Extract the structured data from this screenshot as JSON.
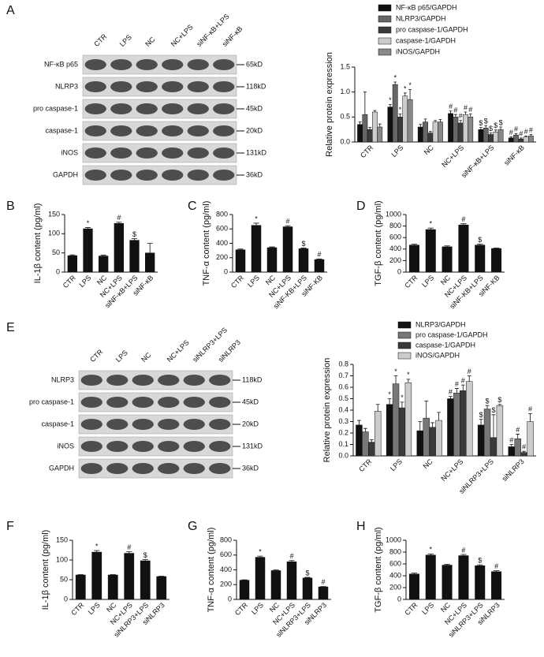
{
  "panels": [
    "A",
    "B",
    "C",
    "D",
    "E",
    "F",
    "G",
    "H"
  ],
  "blots": [
    {
      "lanes": [
        "CTR",
        "LPS",
        "NC",
        "NC+LPS",
        "siNF-κB+LPS",
        "siNF-κB"
      ],
      "rows": [
        {
          "name": "NF-κB p65",
          "kd": "65kD"
        },
        {
          "name": "NLRP3",
          "kd": "118kD"
        },
        {
          "name": "pro caspase-1",
          "kd": "45kD"
        },
        {
          "name": "caspase-1",
          "kd": "20kD"
        },
        {
          "name": "iNOS",
          "kd": "131kD"
        },
        {
          "name": "GAPDH",
          "kd": "36kD"
        }
      ]
    },
    {
      "lanes": [
        "CTR",
        "LPS",
        "NC",
        "NC+LPS",
        "siNLRP3+LPS",
        "siNLRP3"
      ],
      "rows": [
        {
          "name": "NLRP3",
          "kd": "118kD"
        },
        {
          "name": "pro caspase-1",
          "kd": "45kD"
        },
        {
          "name": "caspase-1",
          "kd": "20kD"
        },
        {
          "name": "iNOS",
          "kd": "131kD"
        },
        {
          "name": "GAPDH",
          "kd": "36kD"
        }
      ]
    }
  ],
  "chart_data": [
    {
      "type": "bar",
      "ylabel": "Relative  protein expression",
      "categories": [
        "CTR",
        "LPS",
        "NC",
        "NC+LPS",
        "siNF-κB+LPS",
        "siNF-κB"
      ],
      "ylim": [
        0,
        1.5
      ],
      "yticks": [
        {
          "value": 0,
          "label": "0.0"
        },
        0.5,
        {
          "value": 1,
          "label": "1.0"
        },
        1.5
      ],
      "series": [
        {
          "name": "NF-κB p65/GAPDH",
          "color": "#111111",
          "values": [
            0.35,
            0.7,
            0.3,
            0.57,
            0.25,
            0.08
          ],
          "errors": [
            0.05,
            0.05,
            0.05,
            0.05,
            0.04,
            0.02
          ],
          "marks": [
            null,
            "*",
            null,
            "#",
            "$",
            "#"
          ]
        },
        {
          "name": "NLRP3/GAPDH",
          "color": "#666666",
          "values": [
            0.55,
            1.15,
            0.4,
            0.5,
            0.28,
            0.14
          ],
          "errors": [
            0.45,
            0.05,
            0.06,
            0.05,
            0.05,
            0.03
          ],
          "marks": [
            null,
            "*",
            null,
            "#",
            "$",
            "#"
          ]
        },
        {
          "name": "pro caspase-1/GAPDH",
          "color": "#3a3a3a",
          "values": [
            0.25,
            0.5,
            0.18,
            0.38,
            0.15,
            0.06
          ],
          "errors": [
            0.04,
            0.06,
            0.03,
            0.05,
            0.03,
            0.02
          ],
          "marks": [
            null,
            "*",
            null,
            "#",
            "$",
            "#"
          ]
        },
        {
          "name": "caspase-1/GAPDH",
          "color": "#cccccc",
          "values": [
            0.6,
            0.92,
            0.4,
            0.55,
            0.2,
            0.1
          ],
          "errors": [
            0.03,
            0.06,
            0.03,
            0.05,
            0.04,
            0.02
          ],
          "marks": [
            null,
            "*",
            null,
            "#",
            "$",
            "#"
          ]
        },
        {
          "name": "iNOS/GAPDH",
          "color": "#888888",
          "values": [
            0.3,
            0.85,
            0.4,
            0.5,
            0.25,
            0.12
          ],
          "errors": [
            0.06,
            0.2,
            0.05,
            0.06,
            0.05,
            0.03
          ],
          "marks": [
            null,
            "*",
            null,
            "#",
            "$",
            "#"
          ]
        }
      ]
    },
    {
      "type": "bar",
      "ylabel": "IL-1β  content (pg/ml)",
      "color": "#111111",
      "categories": [
        "CTR",
        "LPS",
        "NC",
        "NC+LPS",
        "siNF-κB+LPS",
        "siNF-κB"
      ],
      "values": [
        43,
        113,
        42,
        127,
        83,
        50
      ],
      "errors": [
        2,
        3,
        2,
        3,
        4,
        25
      ],
      "marks": [
        null,
        "*",
        null,
        "#",
        "$",
        null
      ],
      "ylim": [
        0,
        150
      ],
      "yticks": [
        0,
        50,
        100,
        150
      ]
    },
    {
      "type": "bar",
      "ylabel": "TNF-α content (pg/ml)",
      "color": "#111111",
      "categories": [
        "CTR",
        "LPS",
        "NC",
        "NC+LPS",
        "siNF-KB+LPS",
        "siNF-KB"
      ],
      "values": [
        310,
        650,
        340,
        630,
        325,
        175
      ],
      "errors": [
        10,
        30,
        10,
        15,
        10,
        8
      ],
      "marks": [
        null,
        "*",
        null,
        "#",
        "$",
        "#"
      ],
      "ylim": [
        0,
        800
      ],
      "yticks": [
        0,
        200,
        400,
        600,
        800
      ]
    },
    {
      "type": "bar",
      "ylabel": "TGF-β  content (pg/ml)",
      "color": "#111111",
      "categories": [
        "CTR",
        "LPS",
        "NC",
        "NC+LPS",
        "siNF-KB+LPS",
        "siNF-KB"
      ],
      "values": [
        470,
        740,
        440,
        820,
        470,
        410
      ],
      "errors": [
        15,
        25,
        15,
        20,
        15,
        10
      ],
      "marks": [
        null,
        "*",
        null,
        "#",
        "$",
        null
      ],
      "ylim": [
        0,
        1000
      ],
      "yticks": [
        0,
        200,
        400,
        600,
        800,
        1000
      ]
    },
    {
      "type": "bar",
      "ylabel": "Relative  protein  expression",
      "categories": [
        "CTR",
        "LPS",
        "NC",
        "NC+LPS",
        "siNLRP3+LPS",
        "siNLRP3"
      ],
      "ylim": [
        0,
        0.8
      ],
      "yticks": [
        {
          "value": 0,
          "label": "0.0"
        },
        0.1,
        0.2,
        0.3,
        0.4,
        0.5,
        0.6,
        0.7,
        0.8
      ],
      "series": [
        {
          "name": "NLRP3/GAPDH",
          "color": "#111111",
          "values": [
            0.27,
            0.45,
            0.22,
            0.5,
            0.27,
            0.08
          ],
          "errors": [
            0.04,
            0.05,
            0.08,
            0.02,
            0.05,
            0.02
          ],
          "marks": [
            null,
            "*",
            null,
            "#",
            "$",
            "#"
          ]
        },
        {
          "name": "pro caspase-1/GAPDH",
          "color": "#777777",
          "values": [
            0.21,
            0.63,
            0.33,
            0.55,
            0.41,
            0.15
          ],
          "errors": [
            0.03,
            0.07,
            0.15,
            0.04,
            0.03,
            0.04
          ],
          "marks": [
            null,
            "*",
            null,
            "#",
            "$",
            "#"
          ]
        },
        {
          "name": "caspase-1/GAPDH",
          "color": "#3a3a3a",
          "values": [
            0.12,
            0.42,
            0.25,
            0.57,
            0.16,
            0.03
          ],
          "errors": [
            0.02,
            0.05,
            0.04,
            0.05,
            0.2,
            0.01
          ],
          "marks": [
            null,
            "*",
            null,
            "#",
            "$",
            "#"
          ]
        },
        {
          "name": "iNOS/GAPDH",
          "color": "#cccccc",
          "values": [
            0.39,
            0.64,
            0.31,
            0.65,
            0.44,
            0.3
          ],
          "errors": [
            0.06,
            0.03,
            0.07,
            0.05,
            0.01,
            0.07
          ],
          "marks": [
            null,
            "*",
            null,
            "#",
            "$",
            "#"
          ]
        }
      ]
    },
    {
      "type": "bar",
      "ylabel": "IL-1β  content (pg/ml)",
      "color": "#111111",
      "categories": [
        "CTR",
        "LPS",
        "NC",
        "NC+LPS",
        "siNLRP3+LPS",
        "siNLRP3"
      ],
      "values": [
        62,
        120,
        62,
        117,
        98,
        58
      ],
      "errors": [
        1,
        4,
        1,
        4,
        3,
        1
      ],
      "marks": [
        null,
        "*",
        null,
        "#",
        "$",
        null
      ],
      "ylim": [
        0,
        150
      ],
      "yticks": [
        0,
        50,
        100,
        150
      ]
    },
    {
      "type": "bar",
      "ylabel": "TNF-α content (pg/ml)",
      "color": "#111111",
      "categories": [
        "CTR",
        "LPS",
        "NC",
        "NC+LPS",
        "siNLRP3+LPS",
        "siNLRP3"
      ],
      "values": [
        260,
        570,
        390,
        510,
        290,
        170
      ],
      "errors": [
        5,
        15,
        8,
        15,
        8,
        5
      ],
      "marks": [
        null,
        "*",
        null,
        "#",
        "$",
        "#"
      ],
      "ylim": [
        0,
        800
      ],
      "yticks": [
        0,
        200,
        400,
        600,
        800
      ]
    },
    {
      "type": "bar",
      "ylabel": "TGF-β  content (pg/ml)",
      "color": "#111111",
      "categories": [
        "CTR",
        "LPS",
        "NC",
        "NC+LPS",
        "siNLRP3+LPS",
        "siNLRP3"
      ],
      "values": [
        430,
        750,
        580,
        740,
        570,
        470
      ],
      "errors": [
        15,
        20,
        15,
        20,
        15,
        15
      ],
      "marks": [
        null,
        "*",
        null,
        "#",
        "$",
        "#"
      ],
      "ylim": [
        0,
        1000
      ],
      "yticks": [
        0,
        200,
        400,
        600,
        800,
        1000
      ]
    }
  ]
}
